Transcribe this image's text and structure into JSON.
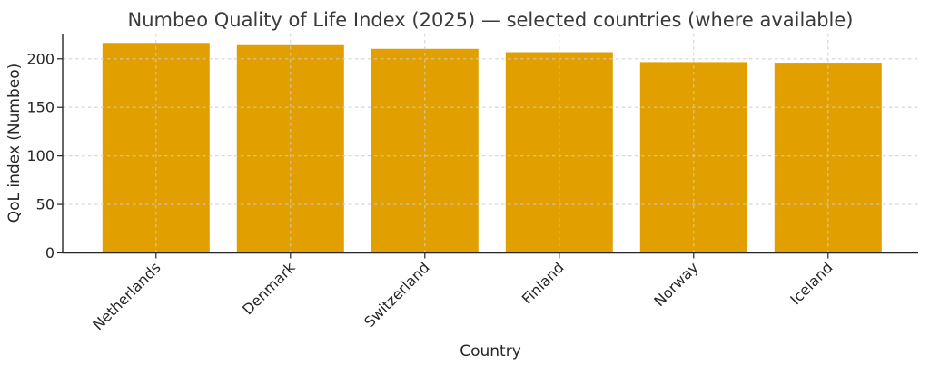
{
  "chart_data": {
    "type": "bar",
    "title": "Numbeo Quality of Life Index (2025) — selected countries (where available)",
    "xlabel": "Country",
    "ylabel": "QoL index (Numbeo)",
    "categories": [
      "Netherlands",
      "Denmark",
      "Switzerland",
      "Finland",
      "Norway",
      "Iceland"
    ],
    "values": [
      216.4,
      215.0,
      210.3,
      206.8,
      196.6,
      196.0
    ],
    "yticks": [
      0,
      50,
      100,
      150,
      200
    ],
    "ylim": [
      0,
      226
    ],
    "grid": "dashed, both axes",
    "legend": "none",
    "bar_color": "#E2A000",
    "grid_color": "#cbcbcb",
    "spine_color": "#262626",
    "text_color": "#262626",
    "title_color": "#3a3a3a",
    "background_color": "#ffffff"
  }
}
